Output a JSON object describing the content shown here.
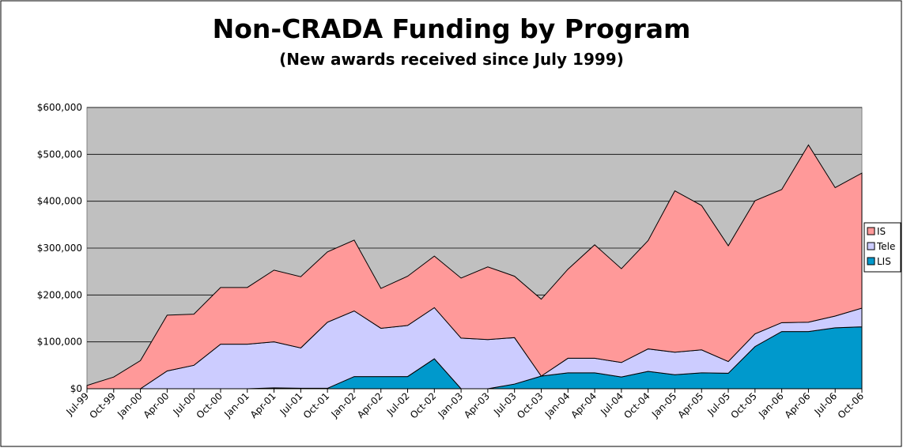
{
  "chart_data": {
    "type": "stacked_area",
    "title": "Non-CRADA Funding by Program",
    "subtitle": "(New awards received since July 1999)",
    "categories": [
      "Jul-99",
      "Oct-99",
      "Jan-00",
      "Apr-00",
      "Jul-00",
      "Oct-00",
      "Jan-01",
      "Apr-01",
      "Jul-01",
      "Oct-01",
      "Jan-02",
      "Apr-02",
      "Jul-02",
      "Oct-02",
      "Jan-03",
      "Apr-03",
      "Jul-03",
      "Oct-03",
      "Jan-04",
      "Apr-04",
      "Jul-04",
      "Oct-04",
      "Jan-05",
      "Apr-05",
      "Jul-05",
      "Oct-05",
      "Jan-06",
      "Apr-06",
      "Jul-06",
      "Oct-06"
    ],
    "series": [
      {
        "name": "LIS",
        "color": "#0099cc",
        "values": [
          0,
          0,
          0,
          0,
          0,
          0,
          0,
          2000,
          1000,
          1000,
          26000,
          26000,
          26000,
          64000,
          0,
          0,
          10000,
          27000,
          34000,
          34000,
          25000,
          37000,
          30000,
          34000,
          33000,
          90000,
          122000,
          122000,
          130000,
          132000
        ]
      },
      {
        "name": "Tele",
        "color": "#ccccff",
        "values": [
          0,
          0,
          0,
          38000,
          50000,
          95000,
          95000,
          98000,
          86000,
          141000,
          140000,
          103000,
          109000,
          109000,
          108000,
          105000,
          99000,
          0,
          31000,
          31000,
          31000,
          48000,
          48000,
          49000,
          25000,
          27000,
          19000,
          20000,
          25000,
          40000
        ]
      },
      {
        "name": "IS",
        "color": "#ff9999",
        "values": [
          7000,
          25000,
          60000,
          119000,
          109000,
          121000,
          121000,
          153000,
          152000,
          150000,
          151000,
          85000,
          105000,
          110000,
          128000,
          155000,
          131000,
          164000,
          190000,
          242000,
          200000,
          231000,
          344000,
          308000,
          247000,
          284000,
          284000,
          378000,
          274000,
          288000
        ]
      }
    ],
    "ylim": [
      0,
      600000
    ],
    "yticks": [
      {
        "value": 0,
        "label": "$0"
      },
      {
        "value": 100000,
        "label": "$100,000"
      },
      {
        "value": 200000,
        "label": "$200,000"
      },
      {
        "value": 300000,
        "label": "$300,000"
      },
      {
        "value": 400000,
        "label": "$400,000"
      },
      {
        "value": 500000,
        "label": "$500,000"
      },
      {
        "value": 600000,
        "label": "$600,000"
      }
    ],
    "grid": true,
    "legend": "right"
  }
}
